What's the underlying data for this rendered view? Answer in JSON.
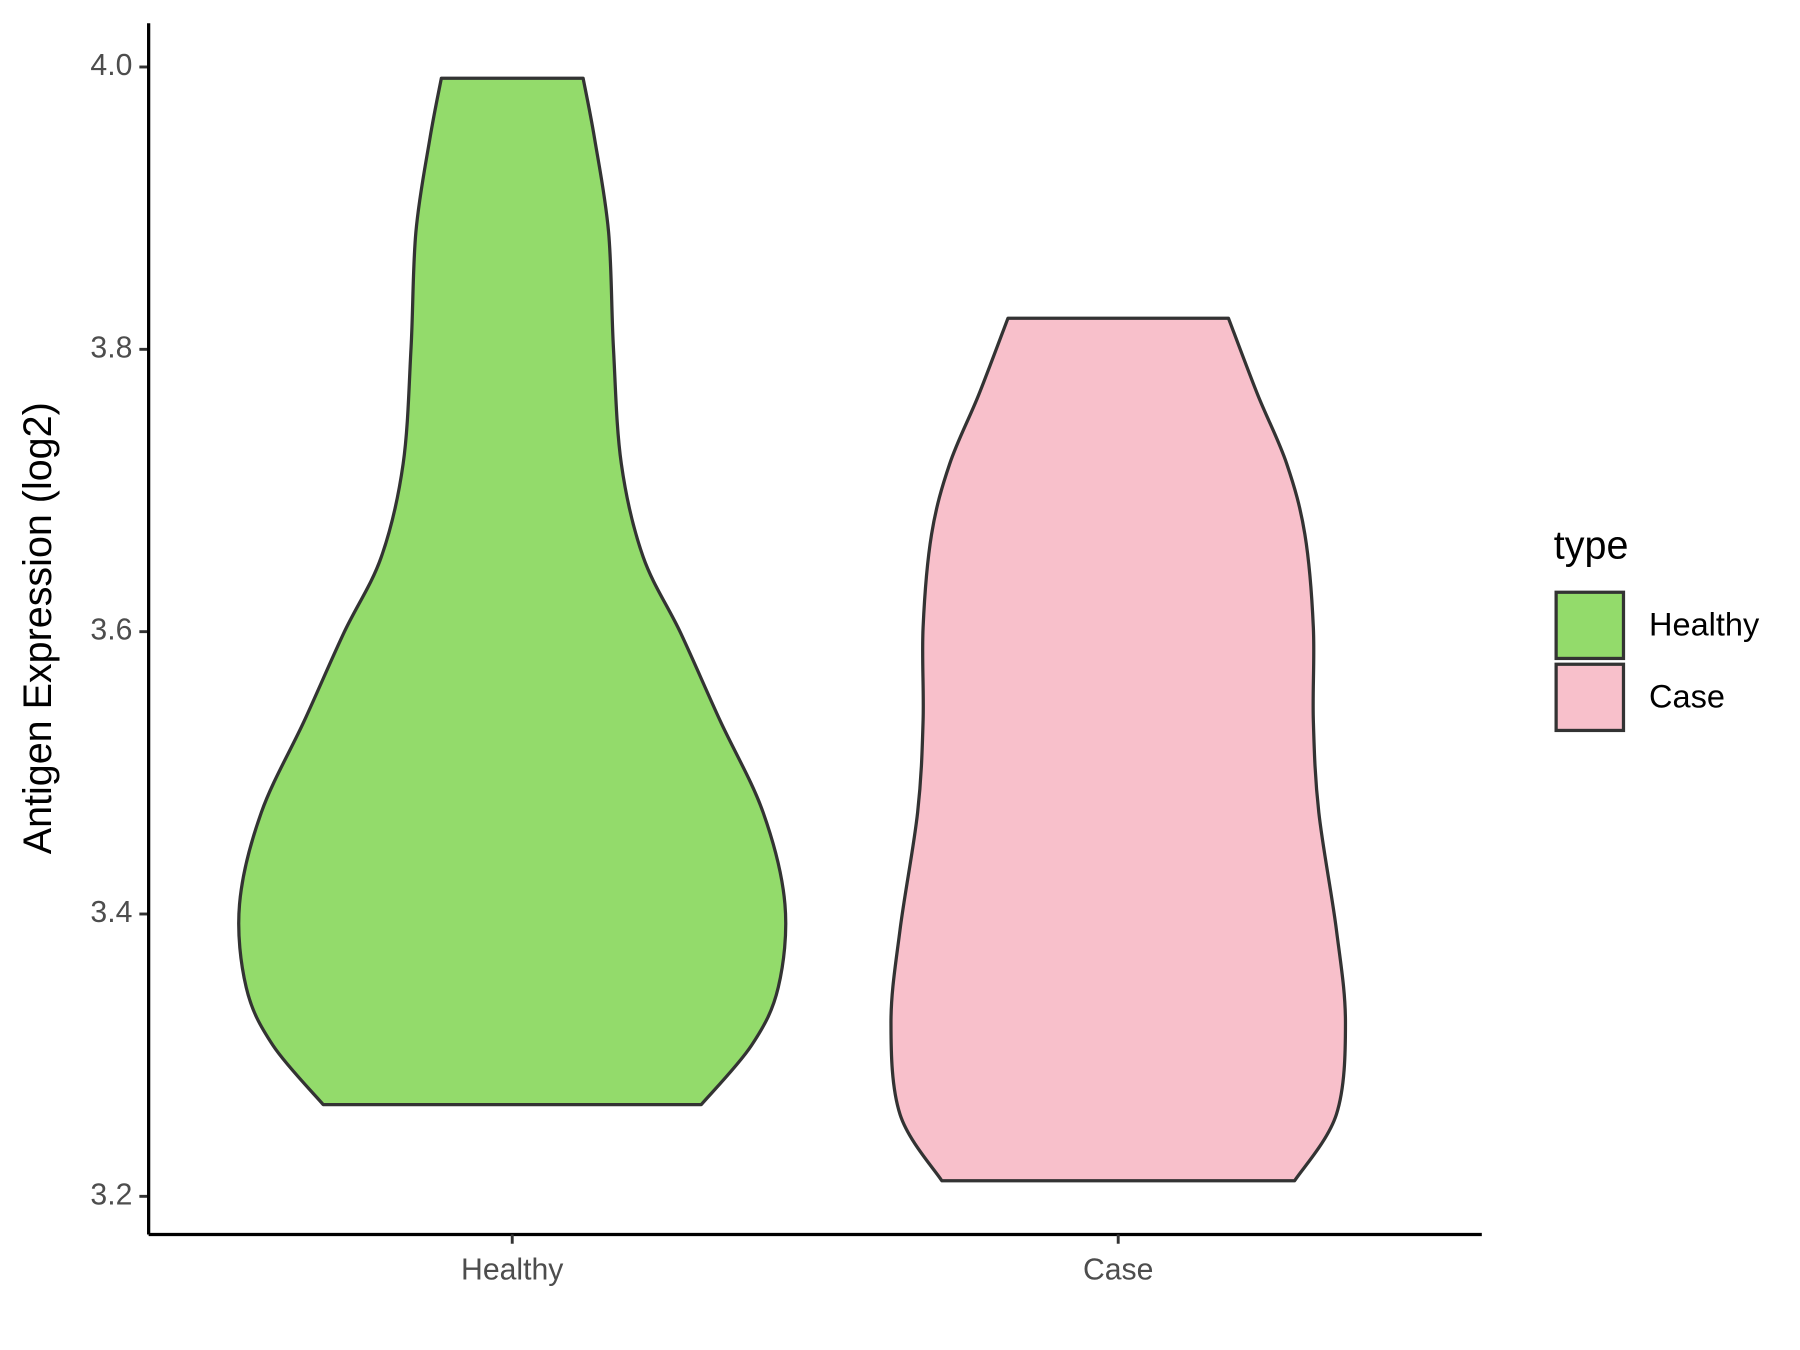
{
  "chart_data": {
    "type": "violin",
    "y_label": "Antigen Expression (log2)",
    "legend_title": "type",
    "categories": [
      "Healthy",
      "Case"
    ],
    "ylim": [
      3.173,
      4.031
    ],
    "yticks": [
      3.2,
      3.4,
      3.6,
      3.8,
      {
        "value": 4,
        "label": "4.0"
      }
    ],
    "series": [
      {
        "name": "Healthy",
        "color": "#93db6b",
        "y": [
          3.265,
          3.307,
          3.348,
          3.407,
          3.472,
          3.537,
          3.599,
          3.653,
          3.719,
          3.801,
          3.883,
          3.949,
          3.992
        ],
        "width": [
          0.312,
          0.395,
          0.439,
          0.45,
          0.414,
          0.343,
          0.278,
          0.216,
          0.18,
          0.167,
          0.159,
          0.136,
          0.117
        ]
      },
      {
        "name": "Case",
        "color": "#f8c0cb",
        "y": [
          3.211,
          3.258,
          3.323,
          3.389,
          3.472,
          3.537,
          3.603,
          3.669,
          3.719,
          3.768,
          3.822
        ],
        "width": [
          0.291,
          0.36,
          0.375,
          0.36,
          0.331,
          0.322,
          0.322,
          0.308,
          0.278,
          0.23,
          0.182
        ]
      }
    ]
  }
}
